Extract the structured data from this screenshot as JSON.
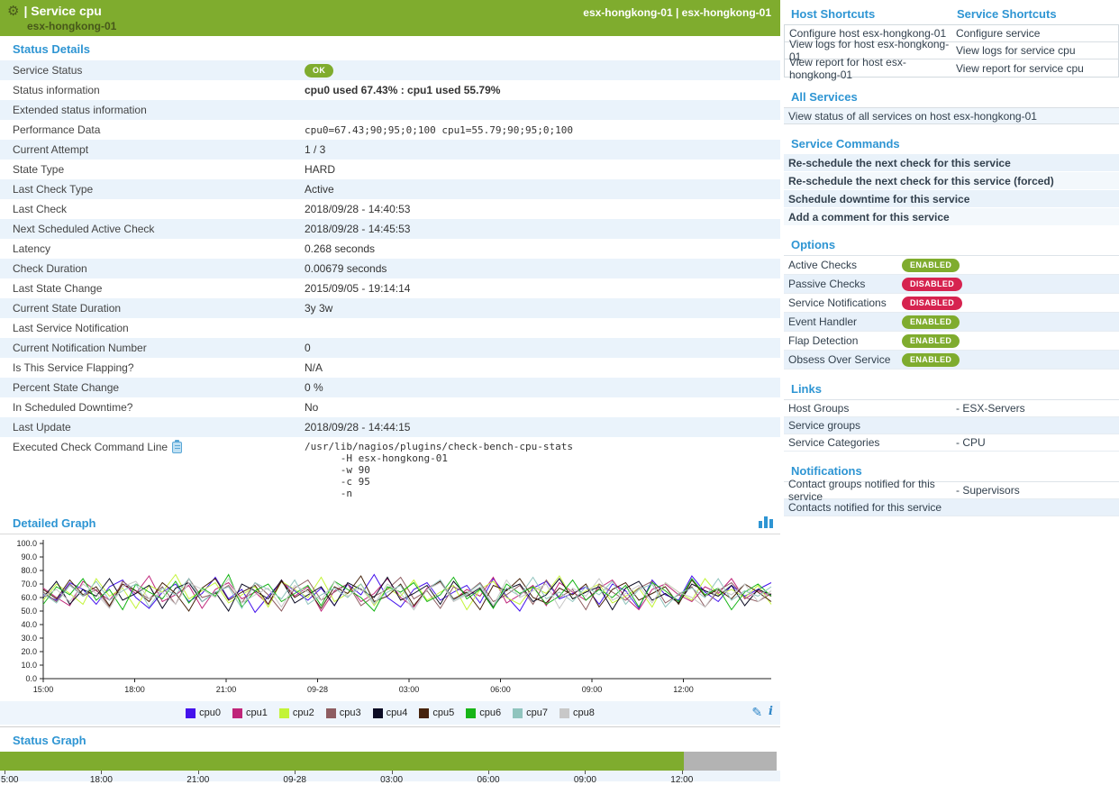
{
  "icons": {
    "gear": "⚙",
    "pencil": "✎",
    "info": "i"
  },
  "colors": {
    "brand_green": "#7fac2e",
    "enabled_green": "#7fae2c",
    "disabled_red": "#d6234f",
    "heading_blue": "#2e95d3",
    "row_blue": "#eaf3fb",
    "status_gray": "#b3b3b3"
  },
  "app_header": {
    "title": "| Service cpu",
    "subtitle": "esx-hongkong-01",
    "breadcrumb": "esx-hongkong-01 | esx-hongkong-01"
  },
  "status_details": {
    "heading": "Status Details",
    "rows": [
      {
        "label": "Service Status",
        "type": "badge",
        "value": "OK",
        "badge": "green"
      },
      {
        "label": "Status information",
        "type": "bold",
        "value": "cpu0 used 67.43% : cpu1 used 55.79%"
      },
      {
        "label": "Extended status information",
        "type": "text",
        "value": ""
      },
      {
        "label": "Performance Data",
        "type": "mono",
        "value": "cpu0=67.43;90;95;0;100 cpu1=55.79;90;95;0;100"
      },
      {
        "label": "Current Attempt",
        "type": "text",
        "value": "1 / 3"
      },
      {
        "label": "State Type",
        "type": "text",
        "value": "HARD"
      },
      {
        "label": "Last Check Type",
        "type": "text",
        "value": "Active"
      },
      {
        "label": "Last Check",
        "type": "text",
        "value": "2018/09/28 - 14:40:53"
      },
      {
        "label": "Next Scheduled Active Check",
        "type": "text",
        "value": "2018/09/28 - 14:45:53"
      },
      {
        "label": "Latency",
        "type": "text",
        "value": "0.268 seconds"
      },
      {
        "label": "Check Duration",
        "type": "text",
        "value": "0.00679 seconds"
      },
      {
        "label": "Last State Change",
        "type": "text",
        "value": "2015/09/05 - 19:14:14"
      },
      {
        "label": "Current State Duration",
        "type": "text",
        "value": "3y 3w"
      },
      {
        "label": "Last Service Notification",
        "type": "text",
        "value": ""
      },
      {
        "label": "Current Notification Number",
        "type": "text",
        "value": "0"
      },
      {
        "label": "Is This Service Flapping?",
        "type": "text",
        "value": "N/A"
      },
      {
        "label": "Percent State Change",
        "type": "text",
        "value": "0 %"
      },
      {
        "label": "In Scheduled Downtime?",
        "type": "text",
        "value": "No"
      },
      {
        "label": "Last Update",
        "type": "text",
        "value": "2018/09/28 - 14:44:15"
      },
      {
        "label": "Executed Check Command Line",
        "type": "command",
        "copy_icon": true,
        "value": "/usr/lib/nagios/plugins/check-bench-cpu-stats\n      -H esx-hongkong-01\n      -w 90\n      -c 95\n      -n"
      }
    ]
  },
  "detailed_graph": {
    "heading": "Detailed Graph"
  },
  "status_graph": {
    "heading": "Status Graph"
  },
  "right_panel": {
    "host_shortcuts_heading": "Host Shortcuts",
    "service_shortcuts_heading": "Service Shortcuts",
    "shortcut_rows": [
      [
        "Configure host esx-hongkong-01",
        "Configure service"
      ],
      [
        "View logs for host esx-hongkong-01",
        "View logs for service cpu"
      ],
      [
        "View report for host esx-hongkong-01",
        "View report for service cpu"
      ]
    ],
    "all_services_heading": "All Services",
    "all_services_link": "View status of all services on host esx-hongkong-01",
    "service_commands_heading": "Service Commands",
    "service_commands": [
      "Re-schedule the next check for this service",
      "Re-schedule the next check for this service (forced)",
      "Schedule downtime for this service",
      "Add a comment for this service"
    ],
    "options_heading": "Options",
    "options": [
      {
        "label": "Active Checks",
        "state": "ENABLED"
      },
      {
        "label": "Passive Checks",
        "state": "DISABLED"
      },
      {
        "label": "Service Notifications",
        "state": "DISABLED"
      },
      {
        "label": "Event Handler",
        "state": "ENABLED"
      },
      {
        "label": "Flap Detection",
        "state": "ENABLED"
      },
      {
        "label": "Obsess Over Service",
        "state": "ENABLED"
      }
    ],
    "links_heading": "Links",
    "links": [
      {
        "label": "Host Groups",
        "value": "- ESX-Servers"
      },
      {
        "label": "Service groups",
        "value": ""
      },
      {
        "label": "Service Categories",
        "value": "- CPU"
      }
    ],
    "notifications_heading": "Notifications",
    "notifications": [
      {
        "label": "Contact groups notified for this service",
        "value": "- Supervisors"
      },
      {
        "label": "Contacts notified for this service",
        "value": ""
      }
    ]
  },
  "chart_data": {
    "detailed_graph": {
      "type": "line",
      "title": "Detailed Graph",
      "ylim": [
        0,
        100
      ],
      "grid": false,
      "legend_position": "bottom",
      "y_tick_labels": [
        "100.0",
        "90.0",
        "80.0",
        "70.0",
        "60.0",
        "50.0",
        "40.0",
        "30.0",
        "20.0",
        "10.0",
        "0.0"
      ],
      "x_tick_labels": [
        "15:00",
        "18:00",
        "21:00",
        "09-28",
        "03:00",
        "06:00",
        "09:00",
        "12:00"
      ],
      "series": [
        {
          "name": "cpu0",
          "color": "#4412ec",
          "values": [
            62,
            58,
            71,
            66,
            55,
            68,
            73,
            60,
            52,
            64,
            70,
            57,
            63,
            75,
            59,
            66,
            49,
            61,
            72,
            65,
            58,
            67,
            54,
            70,
            62,
            77,
            60,
            53,
            66,
            71,
            58,
            64,
            69,
            56,
            74,
            61,
            50,
            67,
            72,
            59,
            63,
            68,
            55,
            70,
            65,
            52,
            73,
            62,
            58,
            76,
            64,
            57,
            69,
            61,
            66,
            71
          ]
        },
        {
          "name": "cpu1",
          "color": "#bf2579",
          "values": [
            67,
            60,
            54,
            72,
            65,
            58,
            70,
            63,
            76,
            57,
            62,
            69,
            52,
            66,
            71,
            59,
            64,
            55,
            73,
            61,
            68,
            50,
            65,
            70,
            57,
            63,
            74,
            60,
            53,
            67,
            72,
            58,
            66,
            61,
            75,
            56,
            62,
            69,
            54,
            71,
            64,
            58,
            67,
            73,
            60,
            51,
            66,
            70,
            62,
            57,
            68,
            63,
            74,
            59,
            65,
            61
          ]
        },
        {
          "name": "cpu2",
          "color": "#c3f438",
          "values": [
            58,
            70,
            63,
            55,
            74,
            61,
            67,
            52,
            69,
            64,
            77,
            59,
            65,
            71,
            56,
            62,
            68,
            53,
            72,
            66,
            60,
            75,
            57,
            63,
            70,
            54,
            67,
            61,
            73,
            58,
            64,
            69,
            51,
            66,
            72,
            60,
            55,
            68,
            63,
            76,
            59,
            65,
            70,
            56,
            61,
            67,
            53,
            71,
            64,
            58,
            74,
            62,
            66,
            60,
            69,
            55
          ]
        },
        {
          "name": "cpu3",
          "color": "#8e5d61",
          "values": [
            64,
            57,
            70,
            61,
            66,
            53,
            72,
            65,
            59,
            68,
            55,
            74,
            60,
            63,
            69,
            56,
            71,
            62,
            50,
            67,
            73,
            58,
            64,
            70,
            54,
            61,
            66,
            75,
            59,
            65,
            52,
            68,
            63,
            71,
            57,
            62,
            69,
            55,
            73,
            60,
            66,
            51,
            70,
            64,
            58,
            67,
            72,
            56,
            62,
            68,
            53,
            65,
            71,
            60,
            57,
            63
          ]
        },
        {
          "name": "cpu4",
          "color": "#0c0c24",
          "values": [
            60,
            72,
            55,
            66,
            61,
            74,
            58,
            63,
            69,
            52,
            67,
            71,
            57,
            64,
            50,
            70,
            65,
            59,
            73,
            56,
            62,
            68,
            54,
            71,
            66,
            60,
            75,
            58,
            63,
            69,
            55,
            72,
            61,
            67,
            53,
            66,
            70,
            57,
            62,
            74,
            59,
            64,
            68,
            51,
            67,
            72,
            58,
            63,
            56,
            70,
            65,
            61,
            69,
            54,
            66,
            62
          ]
        },
        {
          "name": "cpu5",
          "color": "#46230b",
          "values": [
            66,
            59,
            73,
            62,
            68,
            54,
            70,
            65,
            57,
            71,
            63,
            50,
            67,
            74,
            58,
            64,
            69,
            55,
            72,
            60,
            66,
            52,
            68,
            63,
            76,
            57,
            61,
            70,
            54,
            66,
            72,
            59,
            64,
            51,
            69,
            65,
            74,
            60,
            56,
            67,
            62,
            70,
            53,
            66,
            71,
            58,
            63,
            68,
            55,
            73,
            61,
            66,
            59,
            70,
            64,
            57
          ]
        },
        {
          "name": "cpu6",
          "color": "#17b517",
          "values": [
            55,
            68,
            62,
            74,
            58,
            66,
            51,
            70,
            64,
            59,
            72,
            56,
            67,
            61,
            77,
            53,
            65,
            70,
            57,
            63,
            69,
            54,
            72,
            66,
            60,
            50,
            68,
            64,
            71,
            57,
            62,
            75,
            59,
            66,
            52,
            70,
            63,
            68,
            55,
            61,
            73,
            58,
            66,
            60,
            69,
            53,
            71,
            65,
            57,
            74,
            62,
            67,
            51,
            64,
            70,
            61
          ]
        },
        {
          "name": "cpu7",
          "color": "#90c4be",
          "values": [
            63,
            56,
            69,
            61,
            72,
            58,
            65,
            70,
            53,
            67,
            62,
            74,
            57,
            64,
            68,
            52,
            71,
            66,
            59,
            73,
            55,
            62,
            67,
            60,
            70,
            56,
            64,
            69,
            51,
            66,
            73,
            58,
            63,
            70,
            54,
            67,
            61,
            75,
            59,
            64,
            57,
            68,
            62,
            72,
            55,
            66,
            70,
            53,
            63,
            67,
            60,
            74,
            58,
            65,
            61,
            68
          ]
        },
        {
          "name": "cpu8",
          "color": "#c8c8c8",
          "values": [
            61,
            66,
            57,
            70,
            63,
            52,
            68,
            72,
            59,
            64,
            55,
            71,
            66,
            60,
            74,
            56,
            62,
            67,
            53,
            69,
            64,
            58,
            72,
            61,
            67,
            55,
            70,
            63,
            51,
            66,
            71,
            57,
            62,
            68,
            54,
            73,
            60,
            65,
            70,
            52,
            67,
            61,
            74,
            58,
            63,
            69,
            56,
            71,
            64,
            60,
            53,
            67,
            62,
            70,
            57,
            65
          ]
        }
      ]
    },
    "status_graph": {
      "type": "timeline",
      "title": "Status Graph",
      "x_tick_labels": [
        "5:00",
        "18:00",
        "21:00",
        "09-28",
        "03:00",
        "06:00",
        "09:00",
        "12:00"
      ],
      "segments": [
        {
          "state": "OK",
          "color": "#7fac2e",
          "percent": 88
        },
        {
          "state": "NODATA",
          "color": "#b3b3b3",
          "percent": 12
        }
      ]
    }
  }
}
